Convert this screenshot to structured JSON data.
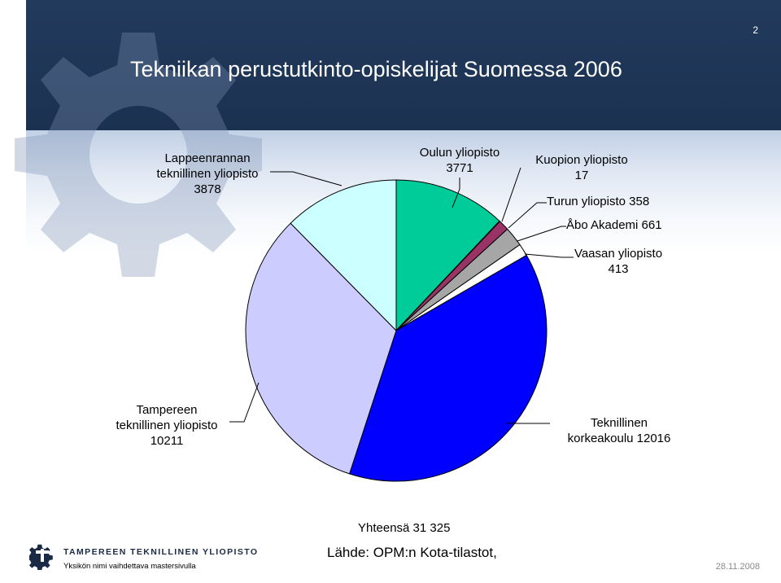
{
  "slide": {
    "number": "2",
    "title": "Tekniikan perustutkinto-opiskelijat Suomessa 2006",
    "total": "Yhteensä 31 325",
    "source": "Lähde: OPM:n Kota-tilastot,",
    "footer_university": "TAMPEREEN TEKNILLINEN YLIOPISTO",
    "footer_subtitle": "Yksikön nimi vaihdettava mastersivulla",
    "footer_date": "28.11.2008"
  },
  "chart_data": {
    "type": "pie",
    "title": "",
    "slices": [
      {
        "name": "Oulun yliopisto",
        "value": 3771,
        "color": "#00cc99",
        "label_lines": [
          "Oulun yliopisto",
          "3771"
        ]
      },
      {
        "name": "Kuopion yliopisto",
        "value": 17,
        "color": "#1a1a8c",
        "label_lines": [
          "Kuopion yliopisto",
          "17"
        ]
      },
      {
        "name": "Turun yliopisto",
        "value": 358,
        "color": "#993366",
        "label_lines": [
          "Turun yliopisto 358"
        ]
      },
      {
        "name": "Åbo Akademi",
        "value": 661,
        "color": "#a6a6a6",
        "label_lines": [
          "Åbo Akademi 661"
        ]
      },
      {
        "name": "Vaasan yliopisto",
        "value": 413,
        "color": "#ffffff",
        "label_lines": [
          "Vaasan yliopisto",
          "413"
        ]
      },
      {
        "name": "Teknillinen korkeakoulu",
        "value": 12016,
        "color": "#0000ff",
        "label_lines": [
          "Teknillinen",
          "korkeakoulu 12016"
        ]
      },
      {
        "name": "Tampereen teknillinen yliopisto",
        "value": 10211,
        "color": "#ccccff",
        "label_lines": [
          "Tampereen",
          "teknillinen yliopisto",
          "10211"
        ]
      },
      {
        "name": "Lappeenrannan teknillinen yliopisto",
        "value": 3878,
        "color": "#ccffff",
        "label_lines": [
          "Lappeenrannan",
          "teknillinen yliopisto",
          "3878"
        ]
      }
    ]
  }
}
